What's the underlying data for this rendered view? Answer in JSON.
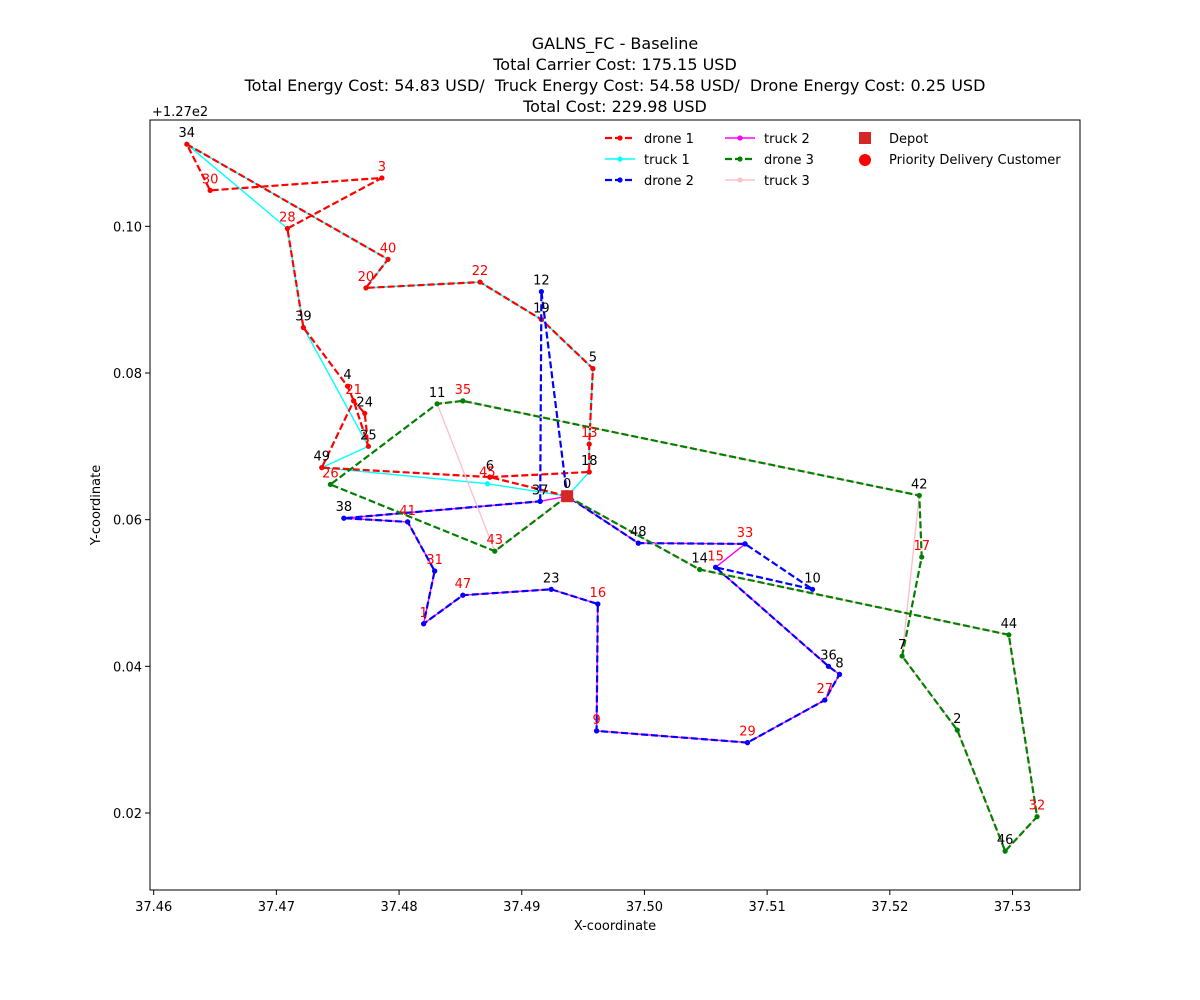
{
  "chart_data": {
    "type": "line",
    "title_lines": [
      "GALNS_FC - Baseline",
      "Total Carrier Cost: 175.15 USD",
      "Total Energy Cost: 54.83 USD/  Truck Energy Cost: 54.58 USD/  Drone Energy Cost: 0.25 USD",
      "Total Cost: 229.98 USD"
    ],
    "xlabel": "X-coordinate",
    "ylabel": "Y-coordinate",
    "y_offset_text": "+1.27e2",
    "xlim": [
      37.4597,
      37.5355
    ],
    "ylim": [
      0.0095,
      0.1145
    ],
    "xticks": [
      "37.46",
      "37.47",
      "37.48",
      "37.49",
      "37.50",
      "37.51",
      "37.52",
      "37.53"
    ],
    "xtick_values": [
      37.46,
      37.47,
      37.48,
      37.49,
      37.5,
      37.51,
      37.52,
      37.53
    ],
    "yticks": [
      "0.02",
      "0.04",
      "0.06",
      "0.08",
      "0.10"
    ],
    "ytick_values": [
      0.02,
      0.04,
      0.06,
      0.08,
      0.1
    ],
    "grid": false,
    "legend_position": "top-right",
    "legend": [
      {
        "label": "drone 1",
        "key": "drone1"
      },
      {
        "label": "truck 1",
        "key": "truck1"
      },
      {
        "label": "drone 2",
        "key": "drone2"
      },
      {
        "label": "truck 2",
        "key": "truck2"
      },
      {
        "label": "drone 3",
        "key": "drone3"
      },
      {
        "label": "truck 3",
        "key": "truck3"
      },
      {
        "label": "Depot",
        "key": "depot"
      },
      {
        "label": "Priority Delivery Customer",
        "key": "priority"
      }
    ],
    "depot": {
      "id": "0",
      "x": 37.4937,
      "y": 0.0632
    },
    "nodes": [
      {
        "id": "1",
        "x": 37.482,
        "y": 0.0458,
        "priority": true
      },
      {
        "id": "2",
        "x": 37.5255,
        "y": 0.0313,
        "priority": false
      },
      {
        "id": "3",
        "x": 37.4786,
        "y": 0.1066,
        "priority": true
      },
      {
        "id": "4",
        "x": 37.4758,
        "y": 0.0782,
        "priority": false
      },
      {
        "id": "5",
        "x": 37.4958,
        "y": 0.0806,
        "priority": false
      },
      {
        "id": "6",
        "x": 37.4874,
        "y": 0.0658,
        "priority": false
      },
      {
        "id": "7",
        "x": 37.521,
        "y": 0.0414,
        "priority": false
      },
      {
        "id": "8",
        "x": 37.5159,
        "y": 0.0389,
        "priority": false
      },
      {
        "id": "9",
        "x": 37.4961,
        "y": 0.0312,
        "priority": true
      },
      {
        "id": "10",
        "x": 37.5137,
        "y": 0.0505,
        "priority": false
      },
      {
        "id": "11",
        "x": 37.4831,
        "y": 0.0758,
        "priority": false
      },
      {
        "id": "12",
        "x": 37.4916,
        "y": 0.0911,
        "priority": false
      },
      {
        "id": "13",
        "x": 37.4955,
        "y": 0.0703,
        "priority": true
      },
      {
        "id": "14",
        "x": 37.5045,
        "y": 0.0532,
        "priority": false
      },
      {
        "id": "15",
        "x": 37.5058,
        "y": 0.0535,
        "priority": true
      },
      {
        "id": "16",
        "x": 37.4962,
        "y": 0.0485,
        "priority": true
      },
      {
        "id": "17",
        "x": 37.5226,
        "y": 0.0549,
        "priority": true
      },
      {
        "id": "18",
        "x": 37.4955,
        "y": 0.0665,
        "priority": false
      },
      {
        "id": "19",
        "x": 37.4916,
        "y": 0.0873,
        "priority": false
      },
      {
        "id": "20",
        "x": 37.4773,
        "y": 0.0916,
        "priority": true
      },
      {
        "id": "21",
        "x": 37.4763,
        "y": 0.0762,
        "priority": true
      },
      {
        "id": "22",
        "x": 37.4866,
        "y": 0.0924,
        "priority": true
      },
      {
        "id": "23",
        "x": 37.4924,
        "y": 0.0505,
        "priority": false
      },
      {
        "id": "24",
        "x": 37.4772,
        "y": 0.0745,
        "priority": false
      },
      {
        "id": "25",
        "x": 37.4775,
        "y": 0.07,
        "priority": false
      },
      {
        "id": "26",
        "x": 37.4744,
        "y": 0.0648,
        "priority": true
      },
      {
        "id": "27",
        "x": 37.5147,
        "y": 0.0354,
        "priority": true
      },
      {
        "id": "28",
        "x": 37.4709,
        "y": 0.0997,
        "priority": true
      },
      {
        "id": "29",
        "x": 37.5084,
        "y": 0.0296,
        "priority": true
      },
      {
        "id": "30",
        "x": 37.4646,
        "y": 0.1049,
        "priority": true
      },
      {
        "id": "31",
        "x": 37.4829,
        "y": 0.053,
        "priority": true
      },
      {
        "id": "32",
        "x": 37.532,
        "y": 0.0195,
        "priority": true
      },
      {
        "id": "33",
        "x": 37.5082,
        "y": 0.0567,
        "priority": true
      },
      {
        "id": "34",
        "x": 37.4627,
        "y": 0.1112,
        "priority": false
      },
      {
        "id": "35",
        "x": 37.4852,
        "y": 0.0762,
        "priority": true
      },
      {
        "id": "36",
        "x": 37.515,
        "y": 0.04,
        "priority": false
      },
      {
        "id": "37",
        "x": 37.4915,
        "y": 0.0625,
        "priority": false
      },
      {
        "id": "38",
        "x": 37.4755,
        "y": 0.0602,
        "priority": false
      },
      {
        "id": "39",
        "x": 37.4722,
        "y": 0.0862,
        "priority": false
      },
      {
        "id": "40",
        "x": 37.4791,
        "y": 0.0955,
        "priority": true
      },
      {
        "id": "41",
        "x": 37.4807,
        "y": 0.0597,
        "priority": true
      },
      {
        "id": "42",
        "x": 37.5224,
        "y": 0.0633,
        "priority": false
      },
      {
        "id": "43",
        "x": 37.4878,
        "y": 0.0557,
        "priority": true
      },
      {
        "id": "44",
        "x": 37.5297,
        "y": 0.0443,
        "priority": false
      },
      {
        "id": "45",
        "x": 37.4872,
        "y": 0.0649,
        "priority": true
      },
      {
        "id": "46",
        "x": 37.5294,
        "y": 0.0148,
        "priority": false
      },
      {
        "id": "47",
        "x": 37.4852,
        "y": 0.0497,
        "priority": true
      },
      {
        "id": "48",
        "x": 37.4995,
        "y": 0.0568,
        "priority": false
      },
      {
        "id": "49",
        "x": 37.4737,
        "y": 0.0671,
        "priority": false
      }
    ],
    "series": [
      {
        "name": "truck 1",
        "key": "truck1",
        "color": "#00ffff",
        "dashed": false,
        "route": [
          "0",
          "45",
          "49",
          "25",
          "39",
          "28",
          "34",
          "40",
          "20",
          "22",
          "19",
          "5",
          "13",
          "18",
          "0"
        ]
      },
      {
        "name": "drone 1",
        "key": "drone1",
        "color": "#ff0000",
        "dashed": true,
        "route": [
          "0",
          "6",
          "49",
          "21",
          "24",
          "25",
          "21",
          "4",
          "39",
          "28",
          "3",
          "30",
          "34",
          "40",
          "20",
          "22",
          "19",
          "5",
          "13",
          "18",
          "6"
        ]
      },
      {
        "name": "truck 2",
        "key": "truck2",
        "color": "#ff00ff",
        "dashed": false,
        "route": [
          "0",
          "48",
          "33",
          "15",
          "36",
          "8",
          "27",
          "29",
          "9",
          "16",
          "23",
          "47",
          "1",
          "31",
          "41",
          "38",
          "37",
          "0"
        ]
      },
      {
        "name": "drone 2",
        "key": "drone2",
        "color": "#0000ff",
        "dashed": true,
        "route": [
          "37",
          "12",
          "0",
          "48",
          "33",
          "10",
          "15",
          "36",
          "8",
          "27",
          "29",
          "9",
          "16",
          "23",
          "47",
          "1",
          "31",
          "41",
          "38",
          "37"
        ]
      },
      {
        "name": "truck 3",
        "key": "truck3",
        "color": "#ffc0cb",
        "dashed": false,
        "route": [
          "0",
          "43",
          "11",
          "35",
          "42",
          "7",
          "2",
          "46",
          "32",
          "44",
          "14",
          "0"
        ]
      },
      {
        "name": "drone 3",
        "key": "drone3",
        "color": "#008000",
        "dashed": true,
        "route": [
          "0",
          "43",
          "26",
          "11",
          "35",
          "42",
          "17",
          "7",
          "2",
          "46",
          "32",
          "44",
          "14",
          "0"
        ]
      }
    ],
    "colors": {
      "depot": "#d62728",
      "priority_label": "#ff0000",
      "normal_label": "#000000"
    }
  }
}
